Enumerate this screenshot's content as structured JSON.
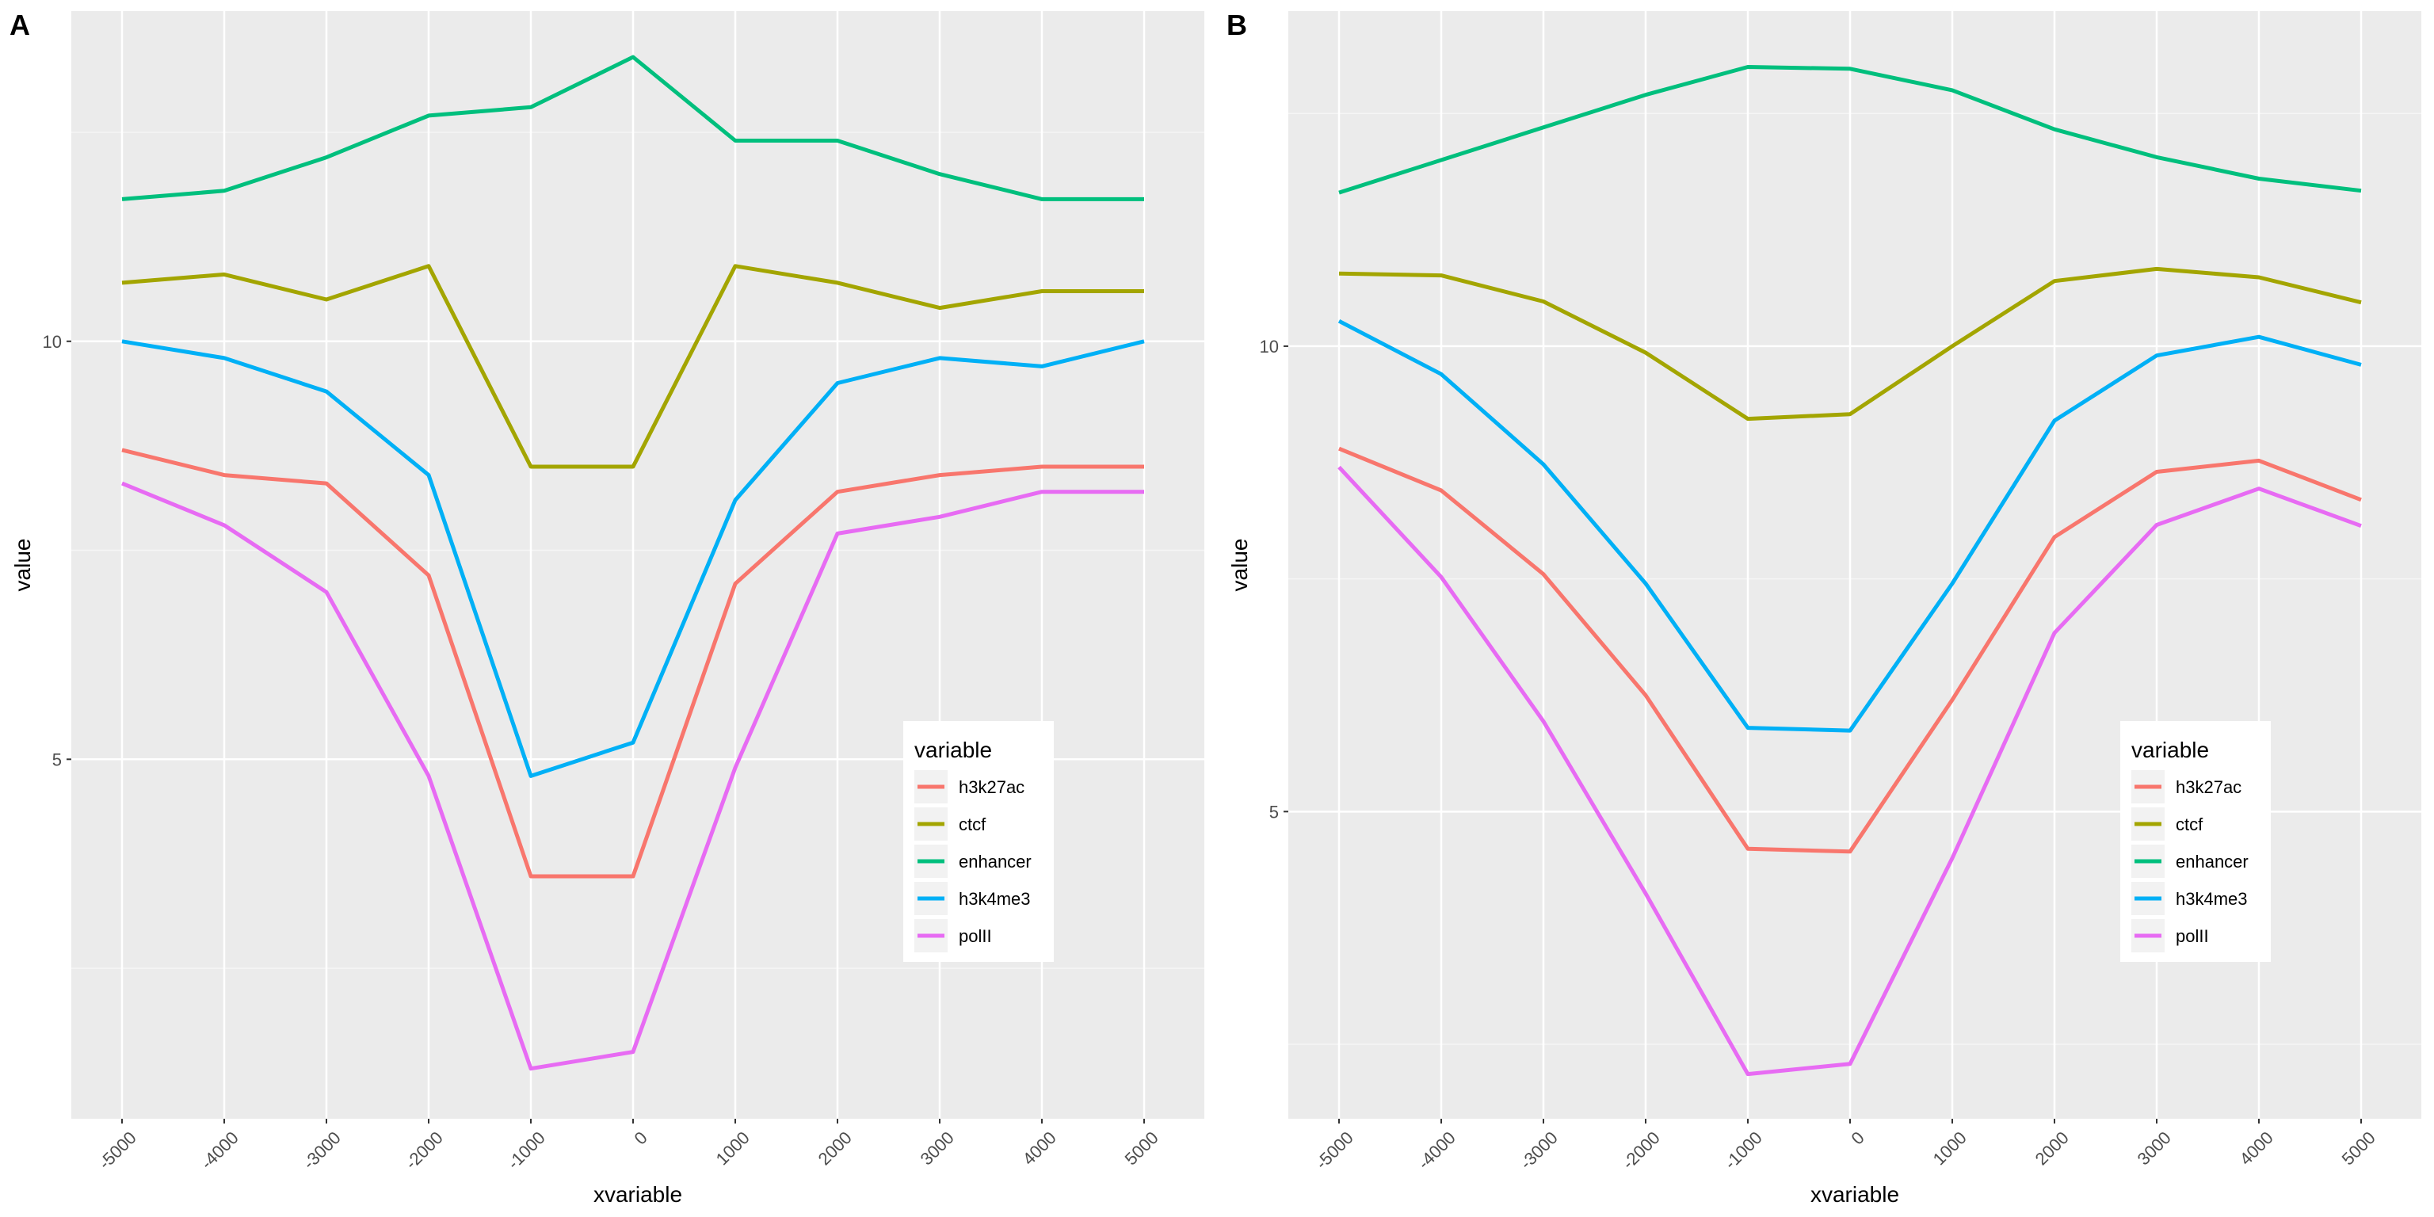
{
  "chart_data": [
    {
      "panel": "A",
      "type": "line",
      "xlabel": "xvariable",
      "ylabel": "value",
      "x": [
        "-5000",
        "-4000",
        "-3000",
        "-2000",
        "-1000",
        "0",
        "1000",
        "2000",
        "3000",
        "4000",
        "5000"
      ],
      "y_ticks": [
        "5",
        "10"
      ],
      "ylim": [
        0.7,
        13.95
      ],
      "grid": true,
      "legend_title": "variable",
      "legend_position": "bottom-right",
      "series": [
        {
          "name": "h3k27ac",
          "color": "#F8766D",
          "values": [
            8.7,
            8.4,
            8.3,
            7.2,
            3.6,
            3.6,
            7.1,
            8.2,
            8.4,
            8.5,
            8.5
          ]
        },
        {
          "name": "ctcf",
          "color": "#A3A500",
          "values": [
            10.7,
            10.8,
            10.5,
            10.9,
            8.5,
            8.5,
            10.9,
            10.7,
            10.4,
            10.6,
            10.6
          ]
        },
        {
          "name": "enhancer",
          "color": "#00BF7D",
          "values": [
            11.7,
            11.8,
            12.2,
            12.7,
            12.8,
            13.4,
            12.4,
            12.4,
            12.0,
            11.7,
            11.7
          ]
        },
        {
          "name": "h3k4me3",
          "color": "#00B0F6",
          "values": [
            10.0,
            9.8,
            9.4,
            8.4,
            4.8,
            5.2,
            8.1,
            9.5,
            9.8,
            9.7,
            10.0
          ]
        },
        {
          "name": "polII",
          "color": "#E76BF3",
          "values": [
            8.3,
            7.8,
            7.0,
            4.8,
            1.3,
            1.5,
            4.9,
            7.7,
            7.9,
            8.2,
            8.2
          ]
        }
      ]
    },
    {
      "panel": "B",
      "type": "line",
      "xlabel": "xvariable",
      "ylabel": "value",
      "x": [
        "-5000",
        "-4000",
        "-3000",
        "-2000",
        "-1000",
        "0",
        "1000",
        "2000",
        "3000",
        "4000",
        "5000"
      ],
      "y_ticks": [
        "5",
        "10"
      ],
      "ylim": [
        1.7,
        13.6
      ],
      "grid": true,
      "legend_title": "variable",
      "legend_position": "bottom-right",
      "series": [
        {
          "name": "h3k27ac",
          "color": "#F8766D",
          "values": [
            8.9,
            8.45,
            7.55,
            6.25,
            4.6,
            4.57,
            6.2,
            7.95,
            8.65,
            8.77,
            8.35
          ]
        },
        {
          "name": "ctcf",
          "color": "#A3A500",
          "values": [
            10.78,
            10.76,
            10.48,
            9.93,
            9.22,
            9.27,
            10.0,
            10.7,
            10.83,
            10.74,
            10.47
          ]
        },
        {
          "name": "enhancer",
          "color": "#00BF7D",
          "values": [
            11.65,
            12.0,
            12.35,
            12.7,
            13.0,
            12.98,
            12.75,
            12.33,
            12.03,
            11.8,
            11.67
          ]
        },
        {
          "name": "h3k4me3",
          "color": "#00B0F6",
          "values": [
            10.27,
            9.7,
            8.73,
            7.45,
            5.9,
            5.87,
            7.45,
            9.2,
            9.9,
            10.1,
            9.8
          ]
        },
        {
          "name": "polII",
          "color": "#E76BF3",
          "values": [
            8.7,
            7.52,
            5.97,
            4.12,
            2.18,
            2.29,
            4.5,
            6.92,
            8.08,
            8.47,
            8.07
          ]
        }
      ]
    }
  ]
}
